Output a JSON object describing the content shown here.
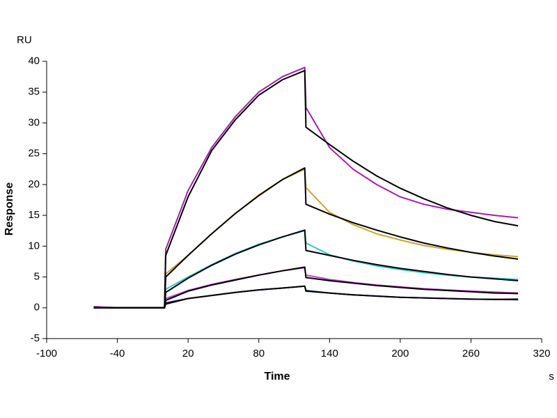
{
  "chart_data": {
    "type": "line",
    "xlabel": "Time",
    "ylabel": "Response",
    "x_unit": "s",
    "y_unit": "RU",
    "x": [
      -60,
      -40,
      -20,
      0,
      1,
      20,
      40,
      60,
      80,
      100,
      119,
      120,
      140,
      160,
      180,
      200,
      220,
      240,
      260,
      280,
      300
    ],
    "series": [
      {
        "color": "#a020a8",
        "values": [
          0.2,
          0,
          0,
          0,
          9.5,
          19,
          26,
          31,
          35,
          37.5,
          39,
          32.5,
          26,
          22.5,
          20,
          18,
          16.8,
          16,
          15.5,
          15,
          14.6
        ]
      },
      {
        "color": "#c8a830",
        "values": [
          0.1,
          0,
          0,
          0,
          5.5,
          8.5,
          12,
          15.3,
          18.3,
          20.8,
          22.5,
          19.5,
          15.5,
          13.5,
          12,
          11,
          10.1,
          9.5,
          9,
          8.6,
          8.3
        ]
      },
      {
        "color": "#30c8cc",
        "values": [
          0.1,
          0,
          0,
          0,
          3,
          5,
          7,
          8.8,
          10.3,
          11.5,
          12.5,
          10.5,
          8.6,
          7.6,
          6.8,
          6.2,
          5.7,
          5.3,
          5,
          4.8,
          4.6
        ]
      },
      {
        "color": "#c040c8",
        "values": [
          0.1,
          0,
          0,
          0,
          1.5,
          2.8,
          3.8,
          4.6,
          5.3,
          6,
          6.5,
          5.3,
          4.6,
          4.1,
          3.7,
          3.4,
          3.1,
          2.9,
          2.7,
          2.55,
          2.4
        ]
      },
      {
        "color": "#202090",
        "values": [
          0,
          0,
          0,
          0,
          0.8,
          1.5,
          2,
          2.5,
          2.9,
          3.2,
          3.5,
          2.8,
          2.4,
          2.1,
          1.9,
          1.7,
          1.6,
          1.5,
          1.4,
          1.35,
          1.3
        ]
      },
      {
        "color": "#000000",
        "values": [
          0,
          0,
          0,
          0,
          8.5,
          18,
          25.5,
          30.5,
          34.5,
          37,
          38.5,
          29.3,
          26.5,
          23.8,
          21.4,
          19.4,
          17.7,
          16.2,
          15,
          14,
          13.3
        ]
      },
      {
        "color": "#000000",
        "values": [
          0,
          0,
          0,
          0,
          5,
          8.5,
          12,
          15.3,
          18.2,
          20.8,
          22.7,
          16.8,
          15.2,
          13.8,
          12.6,
          11.5,
          10.5,
          9.7,
          9,
          8.4,
          7.9
        ]
      },
      {
        "color": "#000000",
        "values": [
          0,
          0,
          0,
          0,
          2.5,
          4.8,
          6.9,
          8.7,
          10.2,
          11.5,
          12.6,
          9.3,
          8.5,
          7.7,
          7,
          6.4,
          5.9,
          5.4,
          5,
          4.7,
          4.4
        ]
      },
      {
        "color": "#000000",
        "values": [
          0,
          0,
          0,
          0,
          1.2,
          2.7,
          3.7,
          4.5,
          5.3,
          6,
          6.6,
          4.9,
          4.4,
          4,
          3.6,
          3.3,
          3,
          2.8,
          2.6,
          2.4,
          2.3
        ]
      },
      {
        "color": "#000000",
        "values": [
          0,
          0,
          0,
          0,
          0.6,
          1.5,
          2,
          2.5,
          2.9,
          3.2,
          3.5,
          2.7,
          2.4,
          2.1,
          1.9,
          1.7,
          1.6,
          1.5,
          1.4,
          1.35,
          1.4
        ]
      }
    ],
    "xlim": [
      -100,
      320
    ],
    "xticks": [
      -100,
      -40,
      20,
      80,
      140,
      200,
      260,
      320
    ],
    "ylim": [
      -5,
      40
    ],
    "yticks": [
      -5,
      0,
      5,
      10,
      15,
      20,
      25,
      30,
      35,
      40
    ]
  }
}
